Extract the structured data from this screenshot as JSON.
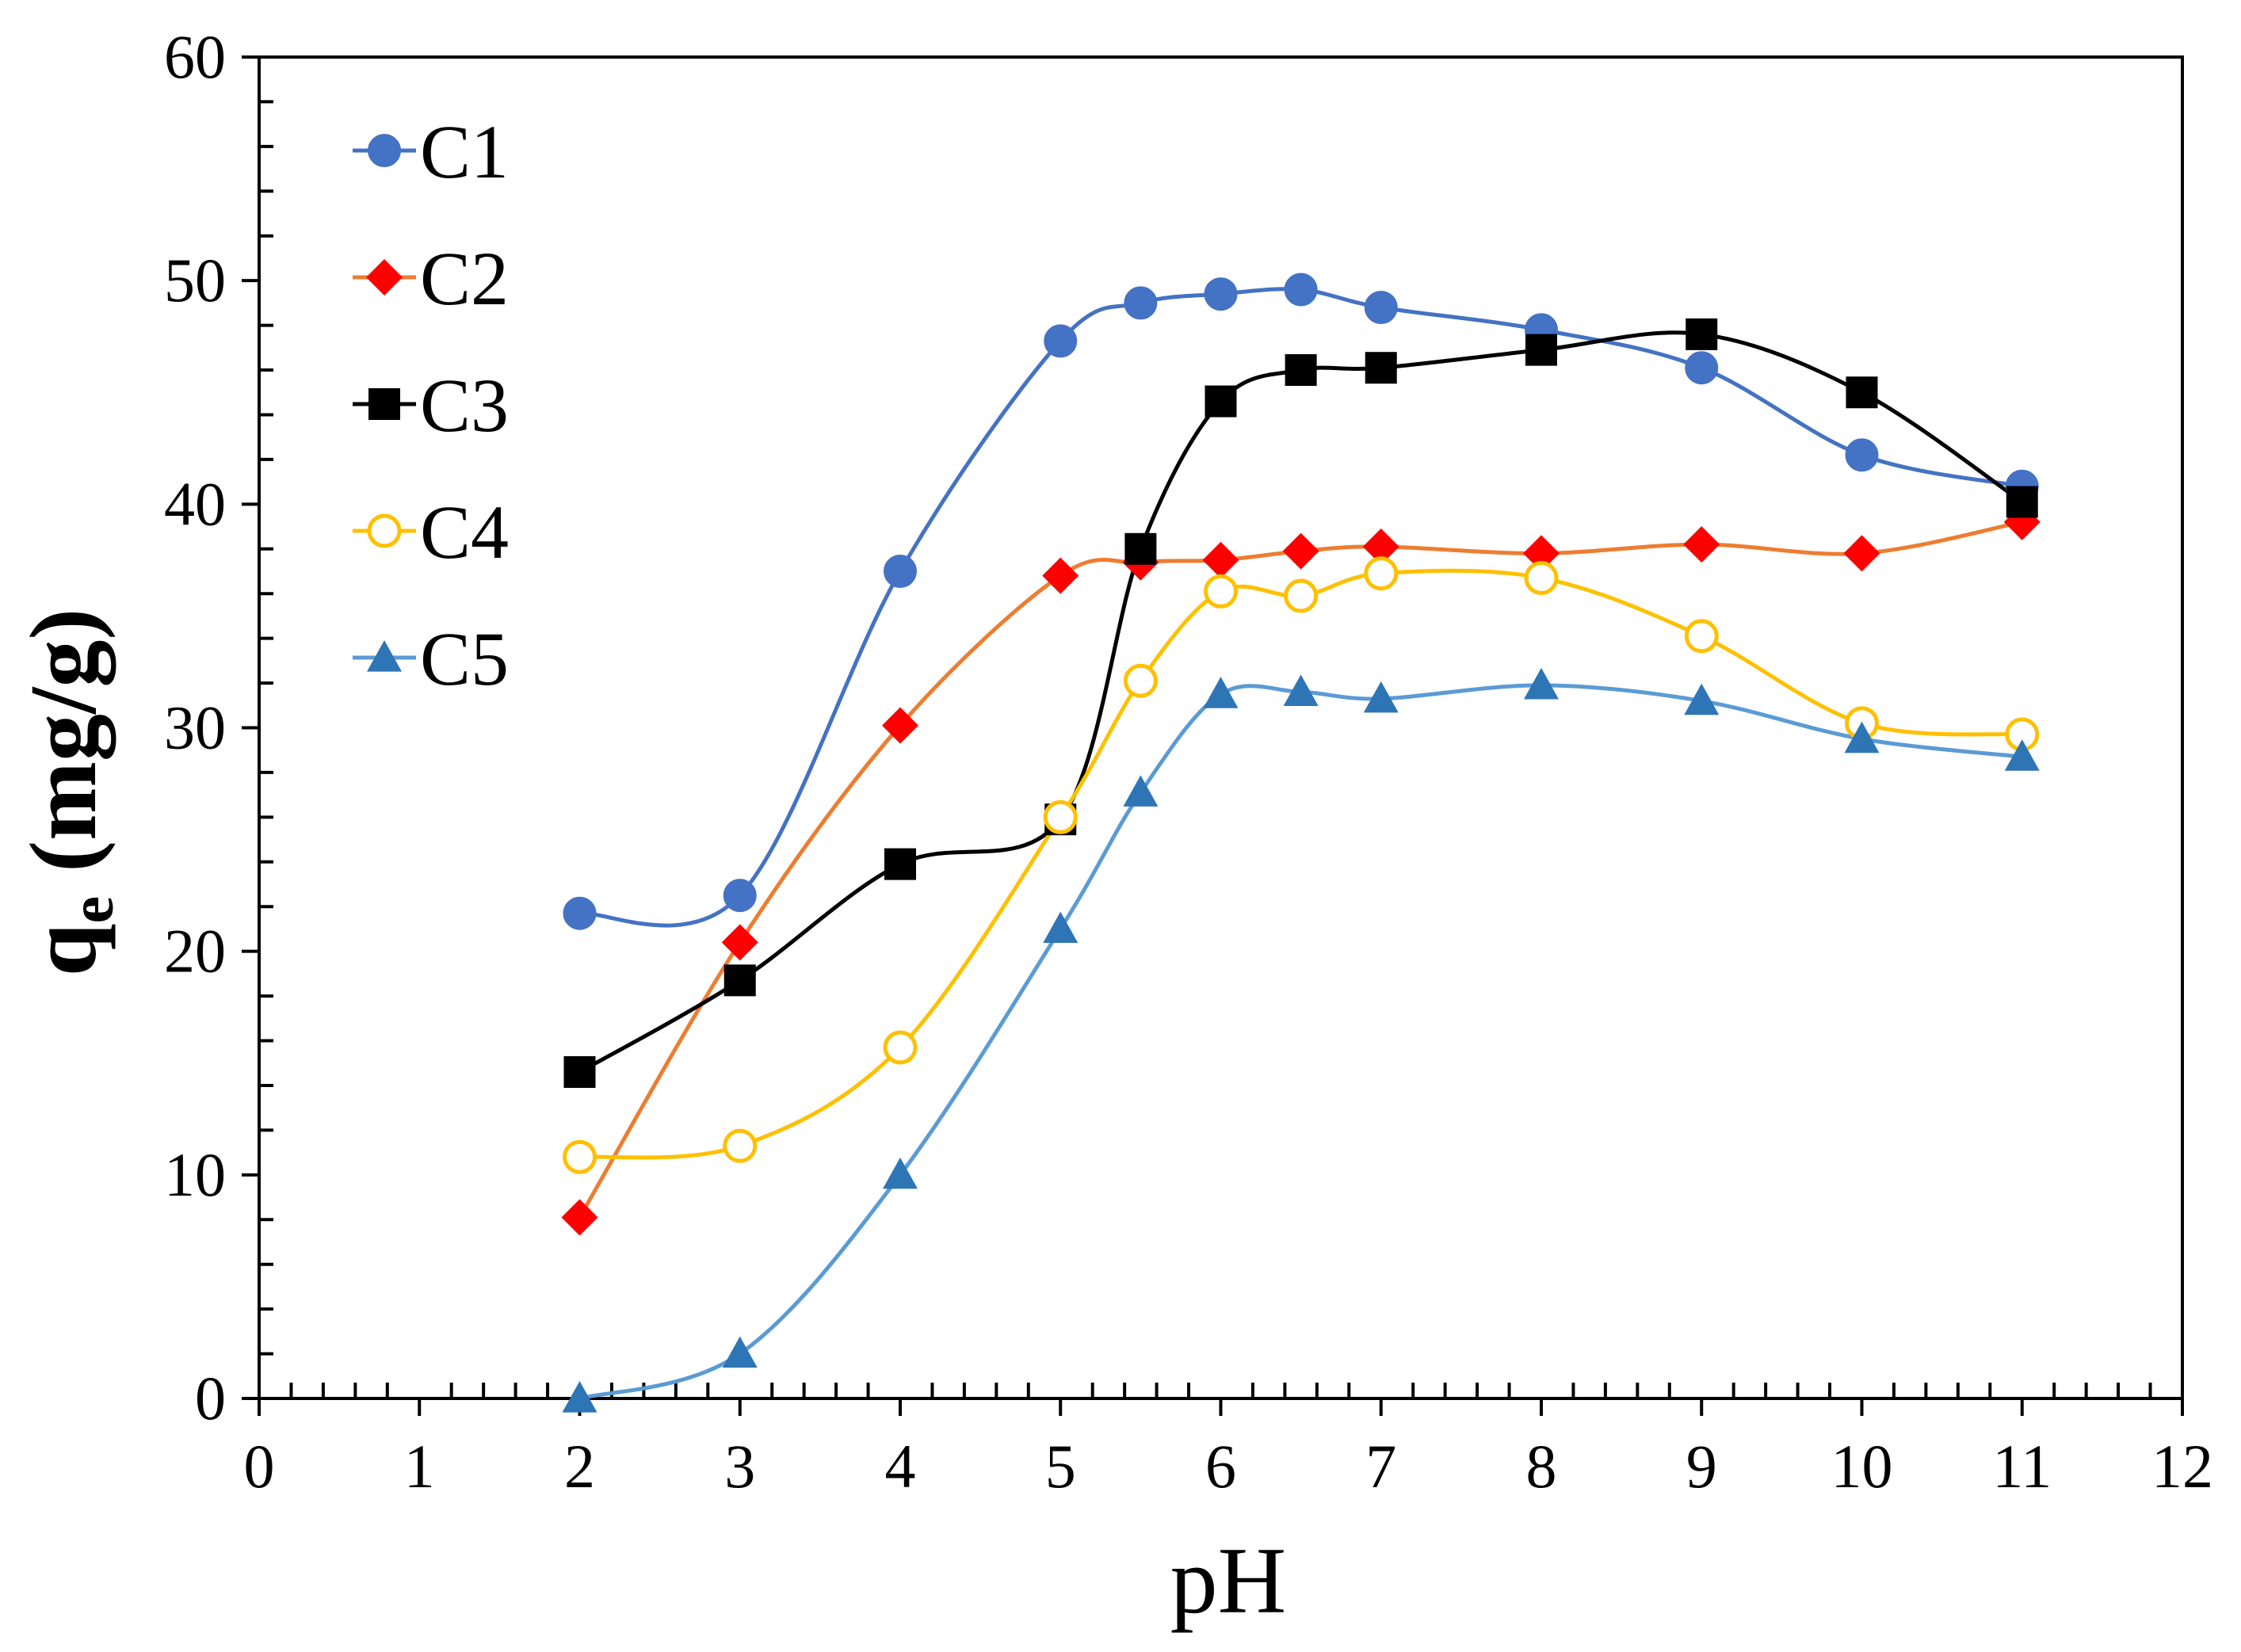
{
  "chart_data": {
    "type": "line",
    "title": "",
    "xlabel": "pH",
    "ylabel": {
      "main": "q",
      "subscript": "e",
      "unit": " (mg/g)"
    },
    "xlim": [
      0,
      12
    ],
    "ylim": [
      0,
      60
    ],
    "xticks": [
      "0",
      "1",
      "2",
      "3",
      "4",
      "5",
      "6",
      "7",
      "8",
      "9",
      "10",
      "11",
      "12"
    ],
    "yticks": [
      "0",
      "10",
      "20",
      "30",
      "40",
      "50",
      "60"
    ],
    "grid": false,
    "legend_position": "top-left",
    "smooth": true,
    "series": [
      {
        "name": "C1",
        "color": "#4472C4",
        "marker": "circle",
        "x": [
          2,
          3,
          4,
          5,
          5.5,
          6,
          6.5,
          7,
          8,
          9,
          10,
          11
        ],
        "y": [
          21.7,
          22.5,
          37,
          47.3,
          49,
          49.4,
          49.6,
          48.8,
          47.8,
          46.1,
          42.2,
          40.8
        ]
      },
      {
        "name": "C2",
        "color": "#ED7D31",
        "marker_color": "#FF0000",
        "marker": "diamond",
        "x": [
          2,
          3,
          4,
          5,
          5.5,
          6,
          6.5,
          7,
          8,
          9,
          10,
          11
        ],
        "y": [
          8.1,
          20.4,
          30.1,
          36.8,
          37.4,
          37.5,
          37.9,
          38.1,
          37.8,
          38.2,
          37.8,
          39.2
        ]
      },
      {
        "name": "C3",
        "color": "#000000",
        "marker": "square",
        "x": [
          2,
          3,
          4,
          5,
          5.5,
          6,
          6.5,
          7,
          8,
          9,
          10,
          11
        ],
        "y": [
          14.6,
          18.7,
          23.9,
          25.9,
          38,
          44.6,
          46,
          46.1,
          46.9,
          47.6,
          45,
          40.1
        ]
      },
      {
        "name": "C4",
        "color": "#FFC000",
        "marker": "open-circle",
        "x": [
          2,
          3,
          4,
          5,
          5.5,
          6,
          6.5,
          7,
          8,
          9,
          10,
          11
        ],
        "y": [
          10.8,
          11.3,
          15.7,
          26,
          32.1,
          36.1,
          35.9,
          36.9,
          36.7,
          34.1,
          30.2,
          29.7
        ]
      },
      {
        "name": "C5",
        "color": "#5B9BD5",
        "marker_color": "#2E75B6",
        "marker": "triangle",
        "x": [
          2,
          3,
          4,
          5,
          5.5,
          6,
          6.5,
          7,
          8,
          9,
          10,
          11
        ],
        "y": [
          0,
          2,
          10,
          21,
          27.1,
          31.5,
          31.6,
          31.3,
          31.9,
          31.2,
          29.5,
          28.7
        ]
      }
    ]
  }
}
